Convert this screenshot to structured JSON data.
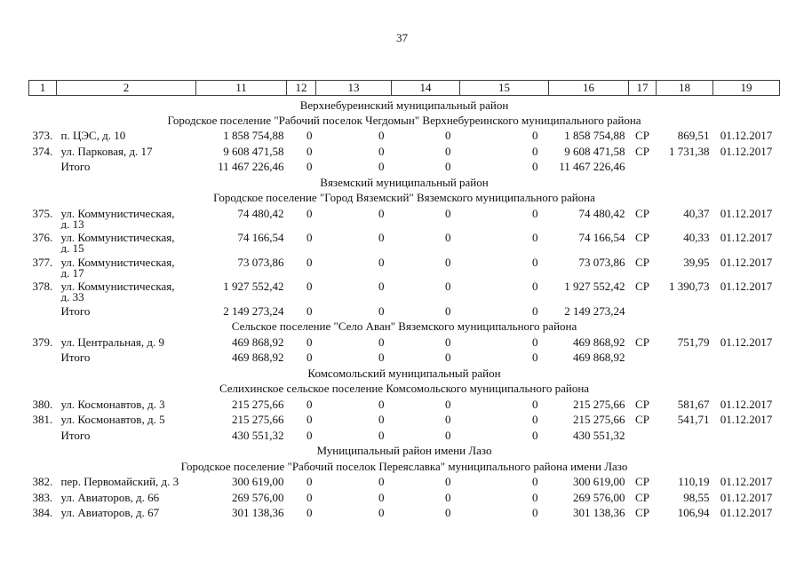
{
  "page": {
    "number": "37"
  },
  "table": {
    "header_cols": [
      "1",
      "2",
      "11",
      "12",
      "13",
      "14",
      "15",
      "16",
      "17",
      "18",
      "19"
    ],
    "rows": [
      {
        "type": "section",
        "text": "Верхнебуреинский муниципальный район"
      },
      {
        "type": "section",
        "text": "Городское поселение \"Рабочий поселок Чегдомын\" Верхнебуреинского муниципального района"
      },
      {
        "type": "data",
        "num": "373.",
        "address": "п. ЦЭС, д. 10",
        "c11": "1 858 754,88",
        "c12": "0",
        "c13": "0",
        "c14": "0",
        "c15": "0",
        "c16": "1 858 754,88",
        "c17": "СР",
        "c18": "869,51",
        "c19": "01.12.2017"
      },
      {
        "type": "data",
        "num": "374.",
        "address": "ул. Парковая, д. 17",
        "c11": "9 608 471,58",
        "c12": "0",
        "c13": "0",
        "c14": "0",
        "c15": "0",
        "c16": "9 608 471,58",
        "c17": "СР",
        "c18": "1 731,38",
        "c19": "01.12.2017"
      },
      {
        "type": "total",
        "label": "Итого",
        "c11": "11 467 226,46",
        "c12": "0",
        "c13": "0",
        "c14": "0",
        "c15": "0",
        "c16": "11 467 226,46",
        "c17": "",
        "c18": "",
        "c19": ""
      },
      {
        "type": "section",
        "text": "Вяземский муниципальный район"
      },
      {
        "type": "section",
        "text": "Городское поселение \"Город Вяземский\" Вяземского муниципального района"
      },
      {
        "type": "data",
        "num": "375.",
        "address": "ул. Коммунистическая,",
        "address2": "д. 13",
        "c11": "74 480,42",
        "c12": "0",
        "c13": "0",
        "c14": "0",
        "c15": "0",
        "c16": "74 480,42",
        "c17": "СР",
        "c18": "40,37",
        "c19": "01.12.2017"
      },
      {
        "type": "data",
        "num": "376.",
        "address": "ул. Коммунистическая,",
        "address2": "д. 15",
        "c11": "74 166,54",
        "c12": "0",
        "c13": "0",
        "c14": "0",
        "c15": "0",
        "c16": "74 166,54",
        "c17": "СР",
        "c18": "40,33",
        "c19": "01.12.2017"
      },
      {
        "type": "data",
        "num": "377.",
        "address": "ул. Коммунистическая,",
        "address2": "д. 17",
        "c11": "73 073,86",
        "c12": "0",
        "c13": "0",
        "c14": "0",
        "c15": "0",
        "c16": "73 073,86",
        "c17": "СР",
        "c18": "39,95",
        "c19": "01.12.2017"
      },
      {
        "type": "data",
        "num": "378.",
        "address": "ул. Коммунистическая,",
        "address2": "д. 33",
        "c11": "1 927 552,42",
        "c12": "0",
        "c13": "0",
        "c14": "0",
        "c15": "0",
        "c16": "1 927 552,42",
        "c17": "СР",
        "c18": "1 390,73",
        "c19": "01.12.2017"
      },
      {
        "type": "total",
        "label": "Итого",
        "c11": "2 149 273,24",
        "c12": "0",
        "c13": "0",
        "c14": "0",
        "c15": "0",
        "c16": "2 149 273,24",
        "c17": "",
        "c18": "",
        "c19": ""
      },
      {
        "type": "section",
        "text": "Сельское поселение \"Село Аван\" Вяземского муниципального района"
      },
      {
        "type": "data",
        "num": "379.",
        "address": "ул. Центральная, д. 9",
        "c11": "469 868,92",
        "c12": "0",
        "c13": "0",
        "c14": "0",
        "c15": "0",
        "c16": "469 868,92",
        "c17": "СР",
        "c18": "751,79",
        "c19": "01.12.2017"
      },
      {
        "type": "total",
        "label": "Итого",
        "c11": "469 868,92",
        "c12": "0",
        "c13": "0",
        "c14": "0",
        "c15": "0",
        "c16": "469 868,92",
        "c17": "",
        "c18": "",
        "c19": ""
      },
      {
        "type": "section",
        "text": "Комсомольский муниципальный район"
      },
      {
        "type": "section",
        "text": "Селихинское сельское поселение Комсомольского муниципального района"
      },
      {
        "type": "data",
        "num": "380.",
        "address": "ул. Космонавтов, д. 3",
        "c11": "215 275,66",
        "c12": "0",
        "c13": "0",
        "c14": "0",
        "c15": "0",
        "c16": "215 275,66",
        "c17": "СР",
        "c18": "581,67",
        "c19": "01.12.2017"
      },
      {
        "type": "data",
        "num": "381.",
        "address": "ул. Космонавтов, д. 5",
        "c11": "215 275,66",
        "c12": "0",
        "c13": "0",
        "c14": "0",
        "c15": "0",
        "c16": "215 275,66",
        "c17": "СР",
        "c18": "541,71",
        "c19": "01.12.2017"
      },
      {
        "type": "total",
        "label": "Итого",
        "c11": "430 551,32",
        "c12": "0",
        "c13": "0",
        "c14": "0",
        "c15": "0",
        "c16": "430 551,32",
        "c17": "",
        "c18": "",
        "c19": ""
      },
      {
        "type": "section",
        "text": "Муниципальный район имени Лазо"
      },
      {
        "type": "section",
        "text": "Городское поселение \"Рабочий поселок Переяславка\" муниципального района имени Лазо"
      },
      {
        "type": "data",
        "num": "382.",
        "address": "пер. Первомайский, д. 3",
        "c11": "300 619,00",
        "c12": "0",
        "c13": "0",
        "c14": "0",
        "c15": "0",
        "c16": "300 619,00",
        "c17": "СР",
        "c18": "110,19",
        "c19": "01.12.2017"
      },
      {
        "type": "data",
        "num": "383.",
        "address": "ул. Авиаторов, д. 66",
        "c11": "269 576,00",
        "c12": "0",
        "c13": "0",
        "c14": "0",
        "c15": "0",
        "c16": "269 576,00",
        "c17": "СР",
        "c18": "98,55",
        "c19": "01.12.2017"
      },
      {
        "type": "data",
        "num": "384.",
        "address": "ул. Авиаторов, д. 67",
        "c11": "301 138,36",
        "c12": "0",
        "c13": "0",
        "c14": "0",
        "c15": "0",
        "c16": "301 138,36",
        "c17": "СР",
        "c18": "106,94",
        "c19": "01.12.2017"
      }
    ]
  }
}
